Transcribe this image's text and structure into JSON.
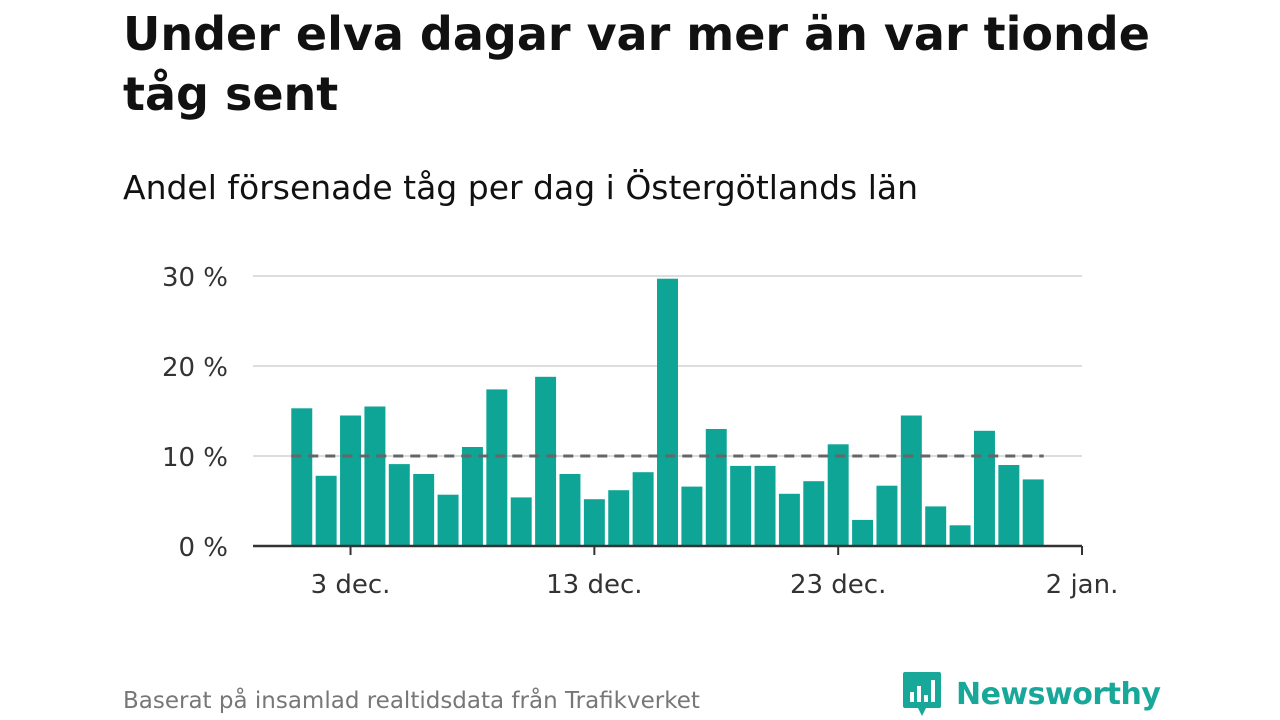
{
  "chart_data": {
    "type": "bar",
    "title": "Under elva dagar var mer än var tionde tåg sent",
    "subtitle": "Andel försenade tåg per dag i Östergötlands län",
    "x": [
      "2025-12-01",
      "2025-12-02",
      "2025-12-03",
      "2025-12-04",
      "2025-12-05",
      "2025-12-06",
      "2025-12-07",
      "2025-12-08",
      "2025-12-09",
      "2025-12-10",
      "2025-12-11",
      "2025-12-12",
      "2025-12-13",
      "2025-12-14",
      "2025-12-15",
      "2025-12-16",
      "2025-12-17",
      "2025-12-18",
      "2025-12-19",
      "2025-12-20",
      "2025-12-21",
      "2025-12-22",
      "2025-12-23",
      "2025-12-24",
      "2025-12-25",
      "2025-12-26",
      "2025-12-27",
      "2025-12-28",
      "2025-12-29",
      "2025-12-30",
      "2025-12-31"
    ],
    "values": [
      15.3,
      7.8,
      14.5,
      15.5,
      9.1,
      8.0,
      5.7,
      11.0,
      17.4,
      5.4,
      18.8,
      8.0,
      5.2,
      6.2,
      8.2,
      29.7,
      6.6,
      13.0,
      8.9,
      8.9,
      5.8,
      7.2,
      11.3,
      2.9,
      6.7,
      14.5,
      4.4,
      2.3,
      12.8,
      9.0,
      7.4
    ],
    "reference_line": {
      "value": 10,
      "style": "dashed",
      "color": "#666666"
    },
    "ylim": [
      0,
      30
    ],
    "yticks": [
      {
        "value": 0,
        "label": "0 %"
      },
      {
        "value": 10,
        "label": "10 %"
      },
      {
        "value": 20,
        "label": "20 %"
      },
      {
        "value": 30,
        "label": "30 %"
      }
    ],
    "xlim": [
      "2025-11-29",
      "2026-01-02"
    ],
    "xticks": [
      {
        "date": "2025-12-03",
        "label": "3 dec."
      },
      {
        "date": "2025-12-13",
        "label": "13 dec."
      },
      {
        "date": "2025-12-23",
        "label": "23 dec."
      },
      {
        "date": "2026-01-02",
        "label": "2 jan."
      }
    ],
    "grid": true,
    "bar_color": "#0ea597",
    "source": "Baserat på insamlad realtidsdata från Trafikverket"
  },
  "brand": {
    "name": "Newsworthy",
    "icon": "bar-chart-logo-icon",
    "color": "#17a89a"
  }
}
